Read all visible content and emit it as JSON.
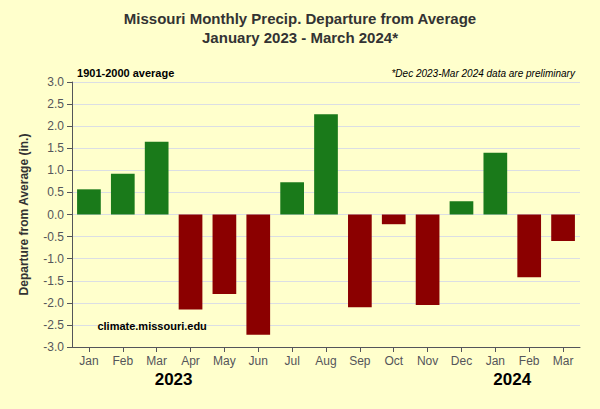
{
  "chart_data": {
    "type": "bar",
    "title": "Missouri Monthly Precip. Departure from Average",
    "subtitle": "January 2023 - March 2024*",
    "ylabel": "Departure from Average (in.)",
    "annotations": [
      {
        "text": "1901-2000 average"
      },
      {
        "text": "*Dec 2023-Mar 2024 data are preliminary"
      },
      {
        "text": "climate.missouri.edu"
      },
      {
        "text": "2023",
        "x": 2.5
      },
      {
        "text": "2024",
        "x": 12.5
      }
    ],
    "categories": [
      "Jan",
      "Feb",
      "Mar",
      "Apr",
      "May",
      "Jun",
      "Jul",
      "Aug",
      "Sep",
      "Oct",
      "Nov",
      "Dec",
      "Jan",
      "Feb",
      "Mar"
    ],
    "values": [
      0.57,
      0.92,
      1.65,
      -2.15,
      -1.8,
      -2.72,
      0.73,
      2.27,
      -2.1,
      -0.22,
      -2.05,
      0.3,
      1.4,
      -1.42,
      -0.6
    ],
    "colors": [
      "#1a7a1a",
      "#1a7a1a",
      "#1a7a1a",
      "#8b0000",
      "#8b0000",
      "#8b0000",
      "#1a7a1a",
      "#1a7a1a",
      "#8b0000",
      "#8b0000",
      "#8b0000",
      "#1a7a1a",
      "#1a7a1a",
      "#8b0000",
      "#8b0000"
    ],
    "ylim": [
      -3.0,
      3.0
    ],
    "yticks": [
      {
        "value": -3.0,
        "label": "-3.0"
      },
      -2.5,
      {
        "value": -2.0,
        "label": "-2.0"
      },
      -1.5,
      {
        "value": -1.0,
        "label": "-1.0"
      },
      -0.5,
      {
        "value": 0.0,
        "label": "0.0"
      },
      0.5,
      {
        "value": 1.0,
        "label": "1.0"
      },
      1.5,
      {
        "value": 2.0,
        "label": "2.0"
      },
      2.5,
      {
        "value": 3.0,
        "label": "3.0"
      }
    ],
    "grid": true
  }
}
